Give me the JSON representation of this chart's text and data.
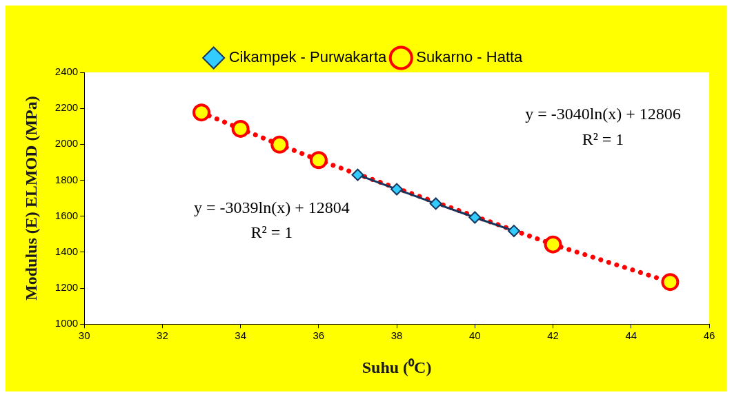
{
  "chart_data": {
    "type": "line",
    "xlabel": "Suhu (⁰C)",
    "ylabel": "Modulus (E) ELMOD (MPa)",
    "xlim": [
      30,
      46
    ],
    "xticks": [
      30,
      32,
      34,
      36,
      38,
      40,
      42,
      44,
      46
    ],
    "ylim": [
      1000,
      2400
    ],
    "yticks": [
      1000,
      1200,
      1400,
      1600,
      1800,
      2000,
      2200,
      2400
    ],
    "grid": false,
    "legend": "top",
    "series": [
      {
        "name": "Cikampek - Purwakarta",
        "color": "#17365d",
        "x": [
          37,
          38,
          39,
          40,
          41
        ],
        "values": [
          1830,
          1750,
          1670,
          1593,
          1518
        ],
        "marker": "diamond",
        "line_style": "solid"
      },
      {
        "name": "Sukarno - Hatta",
        "color": "#ff0000",
        "x": [
          33,
          34,
          35,
          36,
          42,
          45
        ],
        "values": [
          2177,
          2086,
          1998,
          1912,
          1443,
          1234
        ],
        "marker": "circle",
        "line_style": "dotted"
      }
    ],
    "annotations": [
      "y = -3039ln(x) + 12804",
      "R² = 1",
      "y = -3040ln(x) + 12806",
      "R² = 1"
    ]
  }
}
